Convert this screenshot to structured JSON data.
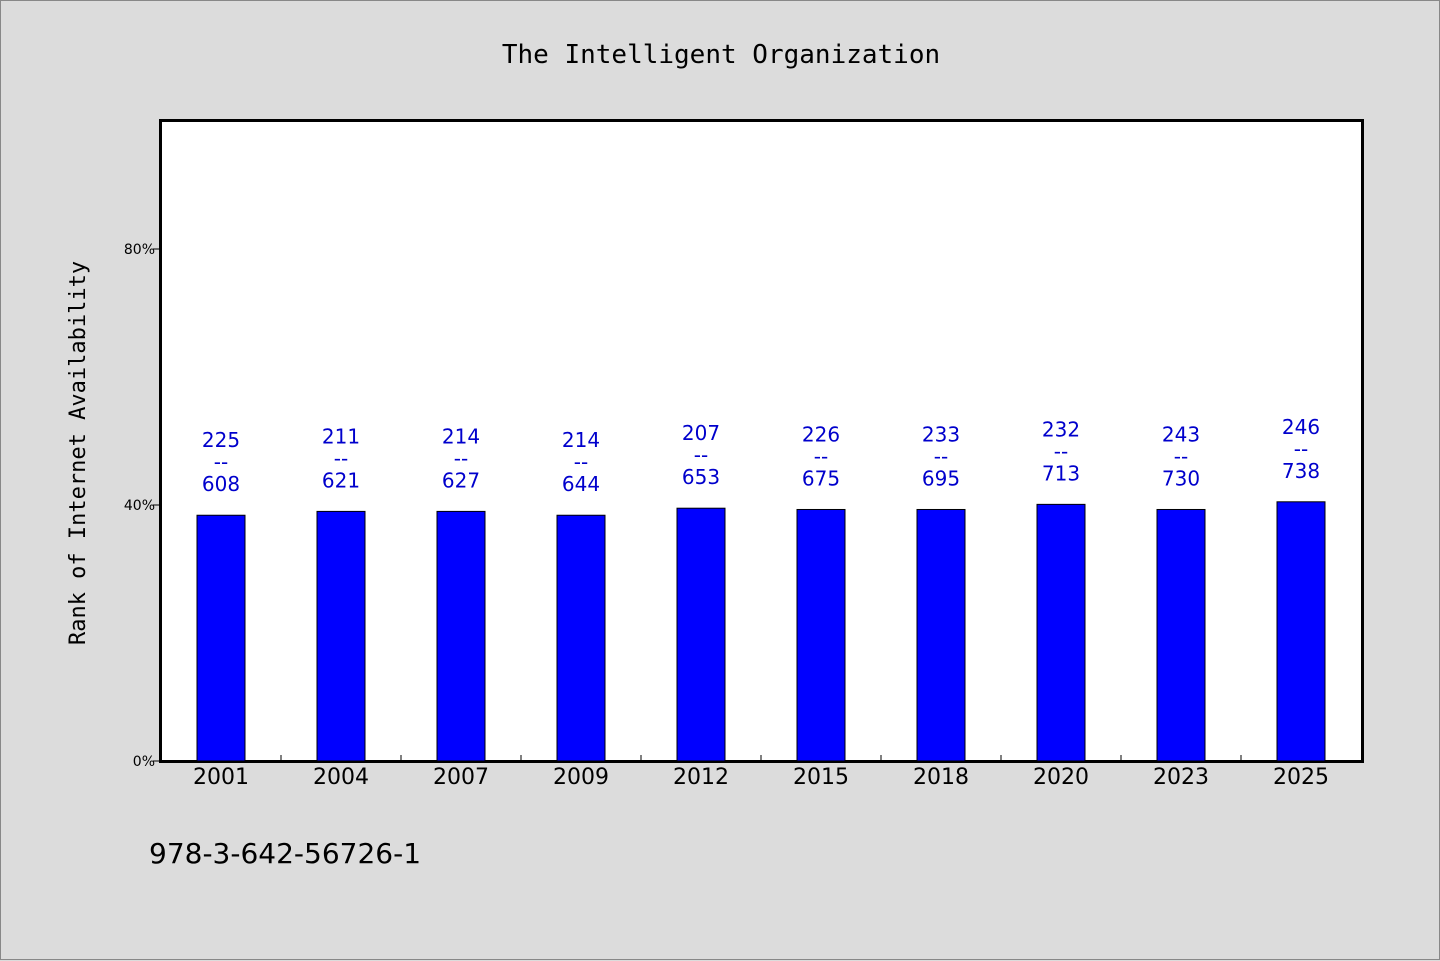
{
  "chart_data": {
    "type": "bar",
    "title": "The Intelligent Organization",
    "ylabel": "Rank of Internet Availability",
    "xlabel": "",
    "ylim": [
      0,
      100
    ],
    "yticks": [
      0,
      40,
      80
    ],
    "ytick_labels": [
      "0%",
      "40%",
      "80%"
    ],
    "categories": [
      "2001",
      "2004",
      "2007",
      "2009",
      "2012",
      "2015",
      "2018",
      "2020",
      "2023",
      "2025"
    ],
    "values": [
      38.4,
      39.0,
      39.0,
      38.4,
      39.5,
      39.3,
      39.3,
      40.1,
      39.3,
      40.5
    ],
    "label_top": [
      "225",
      "211",
      "214",
      "214",
      "207",
      "226",
      "233",
      "232",
      "243",
      "246"
    ],
    "label_sep": "--",
    "label_bottom": [
      "608",
      "621",
      "627",
      "644",
      "653",
      "675",
      "695",
      "713",
      "730",
      "738"
    ],
    "bar_color": "#0000ff",
    "label_color": "#0000cc",
    "grid": false,
    "legend": "none"
  },
  "footer": {
    "text": "978-3-642-56726-1"
  }
}
